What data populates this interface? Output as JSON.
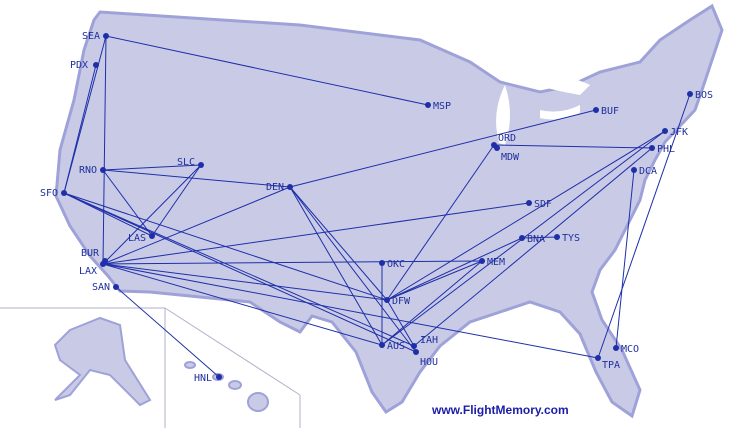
{
  "colors": {
    "land": "#c9cbe6",
    "route": "#1e2fa8",
    "label": "#1e2f9c",
    "water": "#ffffff",
    "border": "#b0b2c8"
  },
  "airports": [
    "SEA",
    "PDX",
    "MSP",
    "BUF",
    "BOS",
    "JFK",
    "PHL",
    "ORD",
    "MDW",
    "DCA",
    "SLC",
    "RNO",
    "DEN",
    "SFO",
    "SDF",
    "LAS",
    "OKC",
    "BNA",
    "TYS",
    "BUR",
    "LAX",
    "MEM",
    "DFW",
    "SAN",
    "AUS",
    "IAH",
    "HOU",
    "MCO",
    "TPA",
    "HNL"
  ],
  "routes": [
    [
      "SEA",
      "MSP"
    ],
    [
      "SEA",
      "SFO"
    ],
    [
      "SEA",
      "LAX"
    ],
    [
      "PDX",
      "SFO"
    ],
    [
      "RNO",
      "SLC"
    ],
    [
      "RNO",
      "DEN"
    ],
    [
      "RNO",
      "LAS"
    ],
    [
      "SFO",
      "DFW"
    ],
    [
      "SFO",
      "IAH"
    ],
    [
      "SFO",
      "LAS"
    ],
    [
      "SFO",
      "HOU"
    ],
    [
      "LAX",
      "DFW"
    ],
    [
      "LAX",
      "MEM"
    ],
    [
      "LAX",
      "DEN"
    ],
    [
      "LAX",
      "SLC"
    ],
    [
      "LAX",
      "TPA"
    ],
    [
      "LAX",
      "SDF"
    ],
    [
      "LAX",
      "AUS"
    ],
    [
      "SLC",
      "LAS"
    ],
    [
      "DEN",
      "BUF"
    ],
    [
      "DEN",
      "AUS"
    ],
    [
      "DEN",
      "HOU"
    ],
    [
      "DEN",
      "DFW"
    ],
    [
      "DFW",
      "ORD"
    ],
    [
      "DFW",
      "JFK"
    ],
    [
      "DFW",
      "BNA"
    ],
    [
      "DFW",
      "MEM"
    ],
    [
      "AUS",
      "MEM"
    ],
    [
      "AUS",
      "JFK"
    ],
    [
      "IAH",
      "PHL"
    ],
    [
      "ORD",
      "PHL"
    ],
    [
      "DCA",
      "MCO"
    ],
    [
      "BOS",
      "TPA"
    ],
    [
      "SAN",
      "HNL"
    ],
    [
      "OKC",
      "AUS"
    ],
    [
      "BNA",
      "TYS"
    ],
    [
      "IAH",
      "DFW"
    ]
  ],
  "footer": "www.FlightMemory.com"
}
